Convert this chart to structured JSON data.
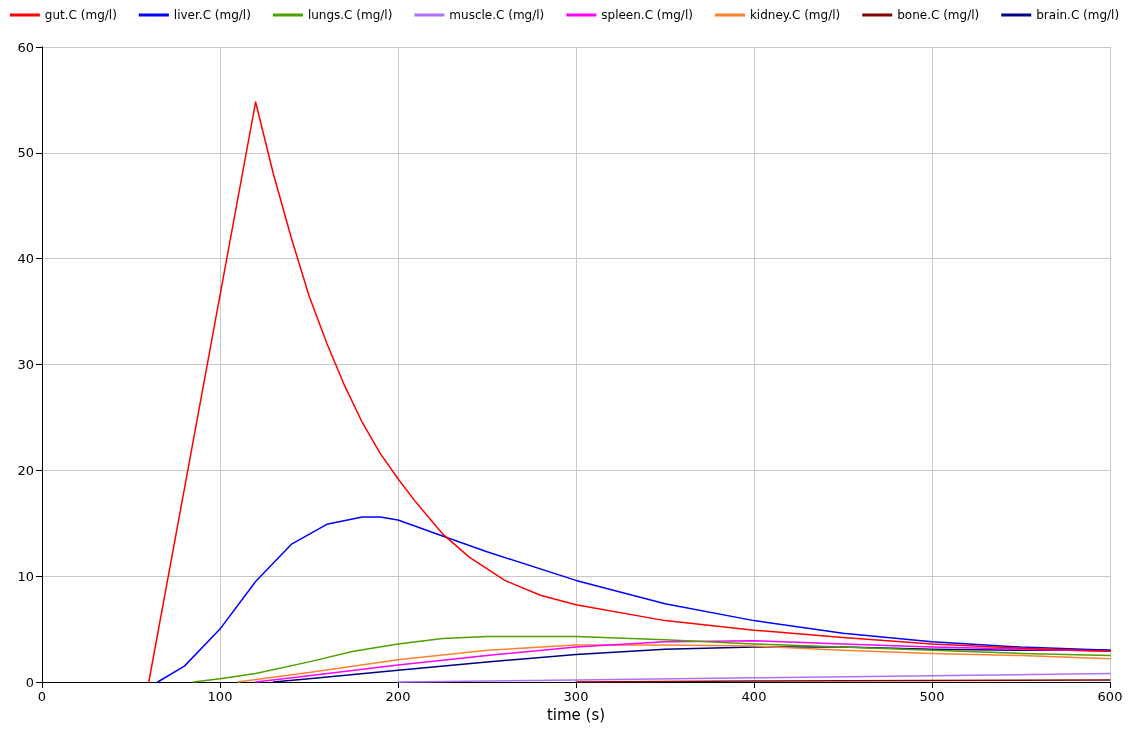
{
  "chart_data": {
    "type": "line",
    "xlabel": "time (s)",
    "xlim": [
      0,
      600
    ],
    "xticks": [
      0,
      100,
      200,
      300,
      400,
      500,
      600
    ],
    "ylim": [
      0,
      60
    ],
    "yticks": [
      0,
      10,
      20,
      30,
      40,
      50,
      60
    ],
    "grid": true,
    "legend": "top",
    "marker": "none",
    "line_style": "solid",
    "series": [
      {
        "name": "gut.C (mg/l)",
        "color": "#ff0000",
        "x": [
          60,
          120,
          130,
          140,
          150,
          160,
          170,
          180,
          190,
          200,
          210,
          225,
          240,
          260,
          280,
          300,
          350,
          400,
          450,
          500,
          550,
          600
        ],
        "values": [
          0,
          54.8,
          48,
          42,
          36.5,
          32,
          28,
          24.5,
          21.6,
          19.2,
          17,
          14,
          11.8,
          9.6,
          8.2,
          7.3,
          5.8,
          4.9,
          4.2,
          3.6,
          3.2,
          2.9
        ]
      },
      {
        "name": "liver.C (mg/l)",
        "color": "#0000ff",
        "x": [
          65,
          80,
          100,
          120,
          140,
          160,
          180,
          190,
          200,
          225,
          250,
          300,
          350,
          400,
          450,
          500,
          550,
          600
        ],
        "values": [
          0,
          1.5,
          5,
          9.5,
          13,
          14.9,
          15.6,
          15.6,
          15.3,
          13.8,
          12.3,
          9.6,
          7.4,
          5.8,
          4.6,
          3.8,
          3.3,
          3
        ]
      },
      {
        "name": "lungs.C (mg/l)",
        "color": "#4ca000",
        "x": [
          85,
          100,
          120,
          150,
          175,
          200,
          225,
          250,
          300,
          350,
          400,
          450,
          500,
          550,
          600
        ],
        "values": [
          0,
          0.3,
          0.8,
          1.9,
          2.9,
          3.6,
          4.1,
          4.3,
          4.3,
          4,
          3.6,
          3.3,
          3,
          2.7,
          2.5
        ]
      },
      {
        "name": "muscle.C (mg/l)",
        "color": "#b070ff",
        "x": [
          200,
          300,
          400,
          500,
          600
        ],
        "values": [
          0,
          0.2,
          0.4,
          0.6,
          0.8
        ]
      },
      {
        "name": "spleen.C (mg/l)",
        "color": "#ff00ff",
        "x": [
          120,
          150,
          200,
          250,
          300,
          350,
          400,
          450,
          500,
          550,
          600
        ],
        "values": [
          0,
          0.6,
          1.6,
          2.5,
          3.3,
          3.8,
          3.9,
          3.6,
          3.3,
          3.1,
          2.9
        ]
      },
      {
        "name": "kidney.C (mg/l)",
        "color": "#ff8030",
        "x": [
          110,
          150,
          200,
          250,
          300,
          350,
          400,
          450,
          500,
          550,
          600
        ],
        "values": [
          0,
          0.9,
          2.1,
          3,
          3.5,
          3.5,
          3.4,
          3,
          2.7,
          2.5,
          2.2
        ]
      },
      {
        "name": "bone.C (mg/l)",
        "color": "#800000",
        "x": [
          300,
          400,
          600
        ],
        "values": [
          0,
          0.1,
          0.2
        ]
      },
      {
        "name": "brain.C (mg/l)",
        "color": "#000080",
        "x": [
          130,
          150,
          200,
          250,
          300,
          350,
          400,
          450,
          500,
          550,
          600
        ],
        "values": [
          0,
          0.3,
          1.1,
          1.9,
          2.6,
          3.1,
          3.3,
          3.3,
          3.1,
          3,
          3
        ]
      }
    ]
  }
}
